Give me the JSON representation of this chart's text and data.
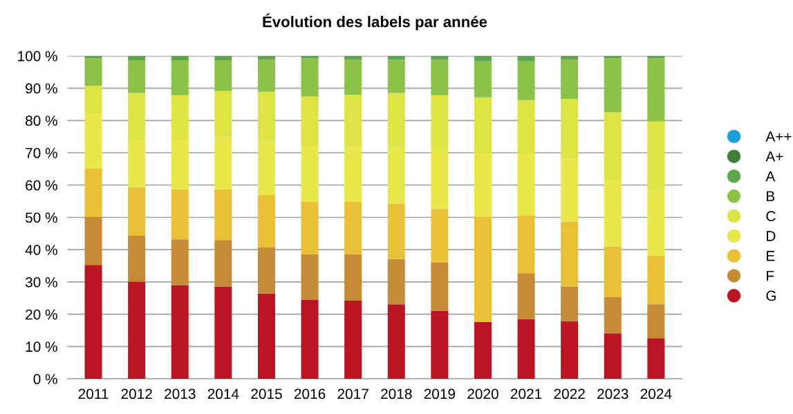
{
  "chart_data": {
    "type": "bar",
    "title": "Évolution des labels par année",
    "stacked": true,
    "categories": [
      "2011",
      "2012",
      "2013",
      "2014",
      "2015",
      "2016",
      "2017",
      "2018",
      "2019",
      "2020",
      "2021",
      "2022",
      "2023",
      "2024"
    ],
    "series": [
      {
        "name": "G",
        "color": "#bb1423",
        "values": [
          35.3,
          30.1,
          29.0,
          28.6,
          26.4,
          24.4,
          24.2,
          23.1,
          21.1,
          17.6,
          18.5,
          17.9,
          14.1,
          12.6
        ]
      },
      {
        "name": "F",
        "color": "#c68b37",
        "values": [
          14.9,
          14.2,
          14.2,
          14.4,
          14.4,
          14.2,
          14.4,
          14.0,
          14.9,
          0,
          14.2,
          10.7,
          11.2,
          10.5
        ]
      },
      {
        "name": "E",
        "color": "#e9c136",
        "values": [
          14.9,
          15.1,
          15.5,
          15.7,
          16.2,
          16.2,
          16.2,
          17.1,
          16.6,
          32.6,
          18.0,
          20.1,
          15.7,
          15.1
        ]
      },
      {
        "name": "D",
        "color": "#e8e84a",
        "values": [
          16.8,
          14.4,
          15.4,
          16.2,
          16.6,
          16.8,
          17.1,
          17.7,
          18.6,
          19.7,
          18.8,
          19.2,
          20.4,
          20.3
        ]
      },
      {
        "name": "C",
        "color": "#dde443",
        "values": [
          8.8,
          14.7,
          13.7,
          14.2,
          15.3,
          15.8,
          16.1,
          16.6,
          16.6,
          17.3,
          16.8,
          18.8,
          21.2,
          21.2
        ]
      },
      {
        "name": "B",
        "color": "#8cc247",
        "values": [
          8.5,
          10.0,
          10.7,
          9.4,
          9.9,
          11.8,
          10.8,
          10.3,
          11.0,
          11.1,
          12.0,
          12.1,
          16.6,
          19.5
        ]
      },
      {
        "name": "A",
        "color": "#5da64a",
        "values": [
          0.8,
          1.5,
          1.5,
          1.5,
          1.2,
          0.8,
          1.2,
          1.2,
          1.2,
          1.7,
          1.7,
          1.2,
          0.8,
          0.8
        ]
      },
      {
        "name": "A+",
        "color": "#3e7f3a",
        "values": [
          null,
          null,
          null,
          null,
          null,
          null,
          null,
          null,
          null,
          null,
          null,
          null,
          null,
          null
        ]
      },
      {
        "name": "A++",
        "color": "#1b9fd8",
        "values": [
          null,
          null,
          null,
          null,
          null,
          null,
          null,
          null,
          null,
          null,
          null,
          null,
          null,
          null
        ]
      }
    ],
    "ylim": [
      0,
      100
    ],
    "yticks": [
      {
        "value": 0,
        "label": "0 %"
      },
      {
        "value": 10,
        "label": "10 %"
      },
      {
        "value": 20,
        "label": "20 %"
      },
      {
        "value": 30,
        "label": "30 %"
      },
      {
        "value": 40,
        "label": "40 %"
      },
      {
        "value": 50,
        "label": "50 %"
      },
      {
        "value": 60,
        "label": "60 %"
      },
      {
        "value": 70,
        "label": "70 %"
      },
      {
        "value": 80,
        "label": "80 %"
      },
      {
        "value": 90,
        "label": "90 %"
      },
      {
        "value": 100,
        "label": "100 %"
      }
    ],
    "grid": "y",
    "legend": "right"
  }
}
